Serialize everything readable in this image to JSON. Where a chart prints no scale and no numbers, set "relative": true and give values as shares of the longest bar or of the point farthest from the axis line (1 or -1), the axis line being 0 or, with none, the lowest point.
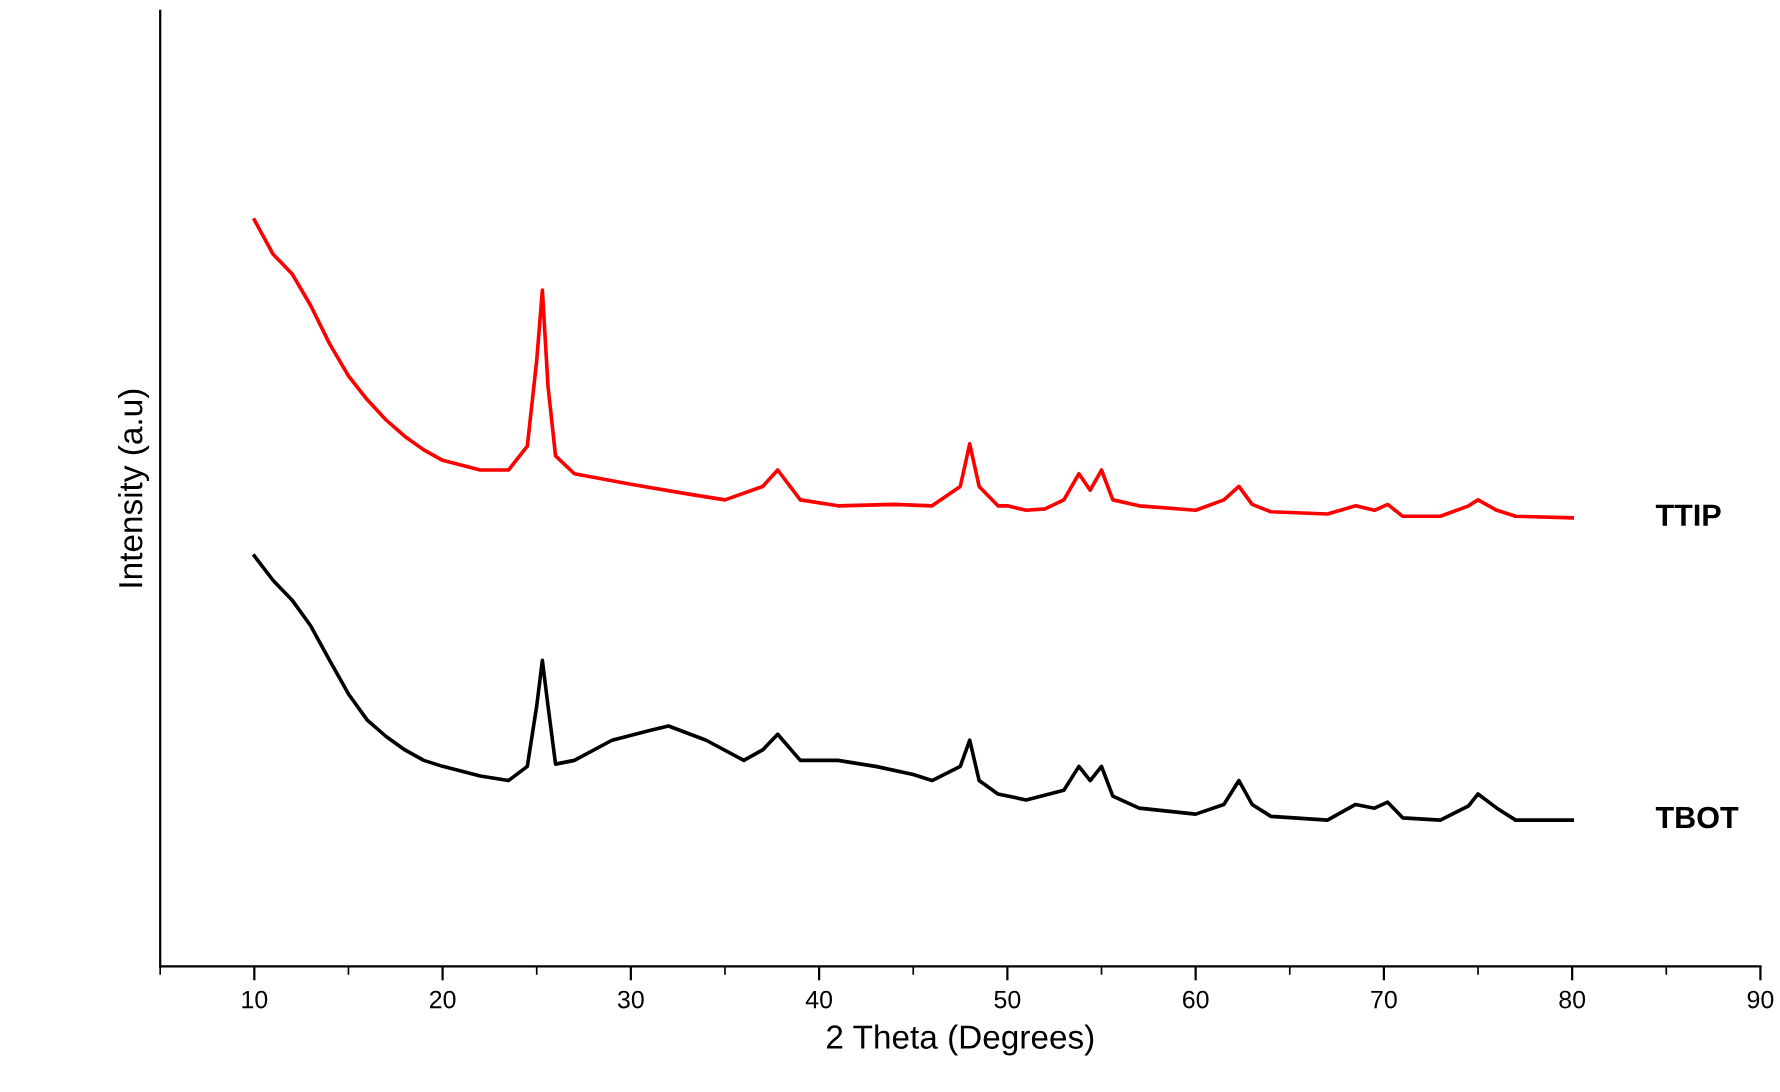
{
  "chart_data": {
    "type": "line",
    "xlabel": "2 Theta (Degrees)",
    "ylabel": "Intensity (a.u)",
    "relative": true,
    "grid": false,
    "legend": false,
    "tick_labels": "x",
    "xlim": [
      5,
      90
    ],
    "xticks": [
      {
        "value": 5,
        "label": null
      },
      10,
      {
        "value": 15,
        "label": null
      },
      20,
      {
        "value": 25,
        "label": null
      },
      30,
      {
        "value": 35,
        "label": null
      },
      40,
      {
        "value": 45,
        "label": null
      },
      50,
      {
        "value": 55,
        "label": null
      },
      60,
      {
        "value": 65,
        "label": null
      },
      70,
      {
        "value": 75,
        "label": null
      },
      80,
      {
        "value": 85,
        "label": null
      },
      90
    ],
    "series": [
      {
        "name": "TTIP",
        "color": "#ff0000",
        "x": [
          10,
          11,
          12,
          13,
          14,
          15,
          16,
          17,
          18,
          19,
          20,
          22,
          23.5,
          24.5,
          25,
          25.3,
          25.6,
          26,
          27,
          30,
          33,
          35,
          37,
          37.8,
          39,
          41,
          44,
          46,
          47.5,
          48,
          48.5,
          49.5,
          50,
          51,
          52,
          53,
          53.8,
          54.4,
          55,
          55.6,
          57,
          60,
          61.5,
          62.3,
          63,
          64,
          67,
          68.5,
          69.5,
          70.2,
          71,
          73,
          74.5,
          75,
          76,
          77,
          80
        ],
        "values": [
          1.0,
          0.954,
          0.928,
          0.885,
          0.834,
          0.791,
          0.759,
          0.732,
          0.71,
          0.692,
          0.678,
          0.665,
          0.665,
          0.697,
          0.812,
          0.906,
          0.777,
          0.684,
          0.66,
          0.646,
          0.633,
          0.625,
          0.643,
          0.665,
          0.625,
          0.617,
          0.619,
          0.617,
          0.643,
          0.7,
          0.643,
          0.617,
          0.617,
          0.611,
          0.613,
          0.625,
          0.66,
          0.638,
          0.665,
          0.625,
          0.617,
          0.611,
          0.625,
          0.643,
          0.619,
          0.609,
          0.606,
          0.617,
          0.611,
          0.619,
          0.603,
          0.603,
          0.617,
          0.625,
          0.611,
          0.603,
          0.601
        ]
      },
      {
        "name": "TBOT",
        "color": "#000000",
        "x": [
          10,
          11,
          12,
          13,
          14,
          15,
          16,
          17,
          18,
          19,
          20,
          22,
          23.5,
          24.5,
          25,
          25.3,
          25.6,
          26,
          27,
          29,
          31,
          32,
          34,
          36,
          37,
          37.8,
          39,
          41,
          43,
          45,
          46,
          47.5,
          48,
          48.5,
          49.5,
          51,
          53,
          53.8,
          54.4,
          55,
          55.6,
          57,
          60,
          61.5,
          62.3,
          63,
          64,
          67,
          68.5,
          69.5,
          70.2,
          71,
          73,
          74.5,
          75,
          76,
          77,
          80
        ],
        "values": [
          0.55,
          0.517,
          0.491,
          0.456,
          0.41,
          0.365,
          0.33,
          0.308,
          0.29,
          0.276,
          0.268,
          0.255,
          0.249,
          0.268,
          0.349,
          0.41,
          0.349,
          0.271,
          0.276,
          0.303,
          0.316,
          0.322,
          0.303,
          0.276,
          0.29,
          0.311,
          0.276,
          0.276,
          0.268,
          0.257,
          0.249,
          0.268,
          0.303,
          0.249,
          0.231,
          0.223,
          0.236,
          0.268,
          0.249,
          0.268,
          0.228,
          0.212,
          0.204,
          0.217,
          0.249,
          0.217,
          0.201,
          0.196,
          0.217,
          0.212,
          0.22,
          0.199,
          0.196,
          0.215,
          0.231,
          0.212,
          0.196,
          0.196
        ]
      }
    ]
  }
}
